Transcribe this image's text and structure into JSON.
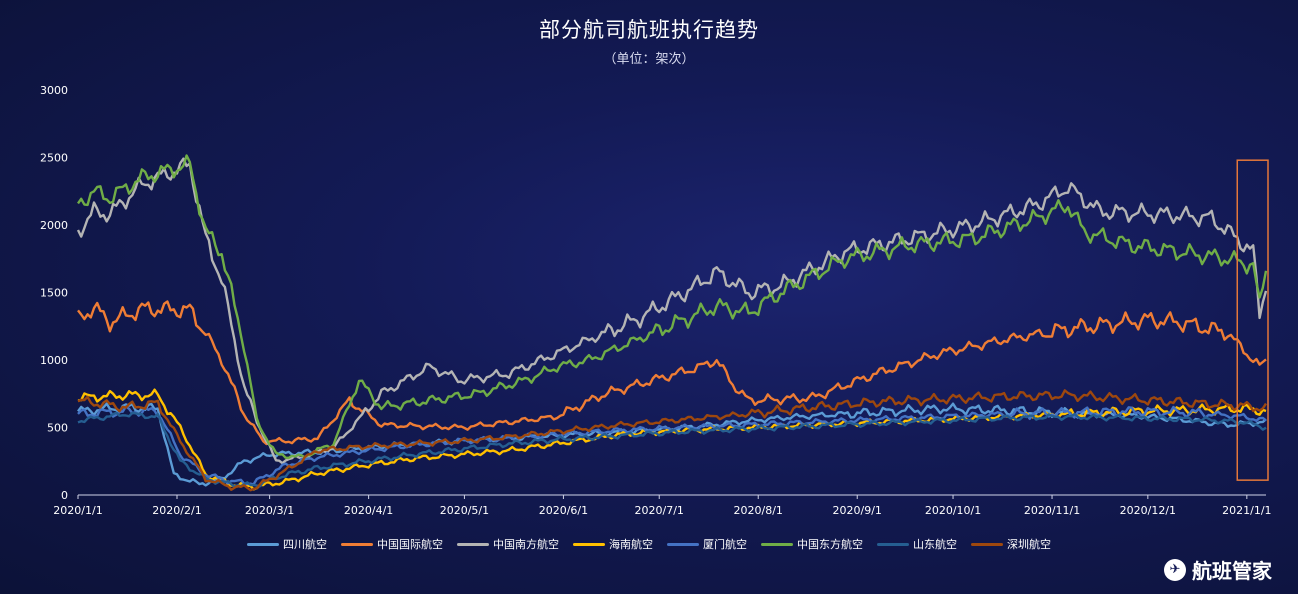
{
  "chart_data": {
    "type": "line",
    "title": "部分航司航班执行趋势",
    "subtitle": "（单位：架次）",
    "ylim": [
      0,
      3000
    ],
    "yticks": [
      "0",
      "500",
      "1000",
      "1500",
      "2000",
      "2500",
      "3000"
    ],
    "xticks": [
      "2020/1/1",
      "2020/2/1",
      "2020/3/1",
      "2020/4/1",
      "2020/5/1",
      "2020/6/1",
      "2020/7/1",
      "2020/8/1",
      "2020/9/1",
      "2020/10/1",
      "2020/11/1",
      "2020/12/1",
      "2021/1/1"
    ],
    "legend_position": "bottom",
    "highlight": {
      "x_start": "2021/1/1",
      "x_end": "2021/1/12",
      "color": "#e4773a"
    },
    "series": [
      {
        "name": "四川航空",
        "color": "#5b9bd5",
        "keys": [
          [
            0,
            620
          ],
          [
            15,
            650
          ],
          [
            25,
            640
          ],
          [
            30,
            150
          ],
          [
            38,
            80
          ],
          [
            45,
            120
          ],
          [
            52,
            250
          ],
          [
            60,
            300
          ],
          [
            75,
            320
          ],
          [
            90,
            350
          ],
          [
            105,
            380
          ],
          [
            120,
            400
          ],
          [
            135,
            420
          ],
          [
            150,
            440
          ],
          [
            165,
            460
          ],
          [
            180,
            480
          ],
          [
            195,
            510
          ],
          [
            210,
            550
          ],
          [
            225,
            580
          ],
          [
            240,
            600
          ],
          [
            255,
            620
          ],
          [
            270,
            640
          ],
          [
            285,
            630
          ],
          [
            300,
            620
          ],
          [
            315,
            600
          ],
          [
            330,
            590
          ],
          [
            345,
            560
          ],
          [
            360,
            520
          ],
          [
            372,
            540
          ]
        ]
      },
      {
        "name": "中国国际航空",
        "color": "#ef7d35",
        "keys": [
          [
            0,
            1300
          ],
          [
            5,
            1390
          ],
          [
            10,
            1280
          ],
          [
            20,
            1380
          ],
          [
            35,
            1370
          ],
          [
            40,
            1200
          ],
          [
            45,
            1000
          ],
          [
            52,
            600
          ],
          [
            58,
            400
          ],
          [
            66,
            400
          ],
          [
            75,
            420
          ],
          [
            85,
            700
          ],
          [
            95,
            520
          ],
          [
            120,
            500
          ],
          [
            150,
            580
          ],
          [
            165,
            750
          ],
          [
            180,
            850
          ],
          [
            195,
            950
          ],
          [
            200,
            1000
          ],
          [
            205,
            820
          ],
          [
            210,
            700
          ],
          [
            230,
            720
          ],
          [
            250,
            900
          ],
          [
            270,
            1050
          ],
          [
            290,
            1150
          ],
          [
            310,
            1230
          ],
          [
            335,
            1300
          ],
          [
            345,
            1280
          ],
          [
            360,
            1200
          ],
          [
            370,
            950
          ],
          [
            372,
            1000
          ]
        ]
      },
      {
        "name": "中国南方航空",
        "color": "#b4b4b4",
        "keys": [
          [
            0,
            1950
          ],
          [
            5,
            2100
          ],
          [
            10,
            2080
          ],
          [
            20,
            2300
          ],
          [
            35,
            2450
          ],
          [
            40,
            1900
          ],
          [
            45,
            1600
          ],
          [
            52,
            800
          ],
          [
            56,
            550
          ],
          [
            62,
            250
          ],
          [
            70,
            280
          ],
          [
            80,
            350
          ],
          [
            95,
            750
          ],
          [
            110,
            950
          ],
          [
            120,
            850
          ],
          [
            135,
            900
          ],
          [
            145,
            1000
          ],
          [
            155,
            1100
          ],
          [
            175,
            1300
          ],
          [
            190,
            1500
          ],
          [
            200,
            1650
          ],
          [
            210,
            1500
          ],
          [
            220,
            1550
          ],
          [
            240,
            1800
          ],
          [
            260,
            1900
          ],
          [
            280,
            2000
          ],
          [
            300,
            2150
          ],
          [
            310,
            2280
          ],
          [
            320,
            2100
          ],
          [
            340,
            2080
          ],
          [
            355,
            2050
          ],
          [
            368,
            1800
          ],
          [
            370,
            1350
          ],
          [
            372,
            1550
          ]
        ]
      },
      {
        "name": "海南航空",
        "color": "#ffc000",
        "keys": [
          [
            0,
            720
          ],
          [
            15,
            740
          ],
          [
            25,
            740
          ],
          [
            32,
            500
          ],
          [
            40,
            150
          ],
          [
            48,
            80
          ],
          [
            55,
            60
          ],
          [
            65,
            100
          ],
          [
            75,
            160
          ],
          [
            90,
            220
          ],
          [
            105,
            270
          ],
          [
            120,
            300
          ],
          [
            135,
            330
          ],
          [
            150,
            380
          ],
          [
            170,
            450
          ],
          [
            190,
            480
          ],
          [
            210,
            500
          ],
          [
            230,
            520
          ],
          [
            250,
            540
          ],
          [
            270,
            560
          ],
          [
            290,
            580
          ],
          [
            310,
            600
          ],
          [
            330,
            620
          ],
          [
            350,
            630
          ],
          [
            365,
            640
          ],
          [
            372,
            620
          ]
        ]
      },
      {
        "name": "厦门航空",
        "color": "#4472c4",
        "keys": [
          [
            0,
            600
          ],
          [
            15,
            620
          ],
          [
            25,
            620
          ],
          [
            32,
            300
          ],
          [
            40,
            150
          ],
          [
            48,
            100
          ],
          [
            55,
            90
          ],
          [
            65,
            220
          ],
          [
            75,
            280
          ],
          [
            90,
            330
          ],
          [
            105,
            370
          ],
          [
            120,
            400
          ],
          [
            135,
            420
          ],
          [
            150,
            450
          ],
          [
            170,
            480
          ],
          [
            190,
            500
          ],
          [
            210,
            520
          ],
          [
            230,
            540
          ],
          [
            250,
            560
          ],
          [
            270,
            580
          ],
          [
            290,
            600
          ],
          [
            310,
            610
          ],
          [
            330,
            620
          ],
          [
            350,
            610
          ],
          [
            365,
            580
          ],
          [
            372,
            550
          ]
        ]
      },
      {
        "name": "中国东方航空",
        "color": "#70ad47",
        "keys": [
          [
            0,
            2150
          ],
          [
            5,
            2250
          ],
          [
            10,
            2200
          ],
          [
            20,
            2350
          ],
          [
            35,
            2450
          ],
          [
            40,
            1950
          ],
          [
            45,
            1800
          ],
          [
            52,
            1100
          ],
          [
            56,
            550
          ],
          [
            62,
            300
          ],
          [
            70,
            280
          ],
          [
            80,
            380
          ],
          [
            88,
            850
          ],
          [
            95,
            650
          ],
          [
            110,
            700
          ],
          [
            125,
            750
          ],
          [
            140,
            850
          ],
          [
            150,
            950
          ],
          [
            160,
            1000
          ],
          [
            175,
            1150
          ],
          [
            190,
            1300
          ],
          [
            200,
            1400
          ],
          [
            210,
            1350
          ],
          [
            220,
            1500
          ],
          [
            240,
            1750
          ],
          [
            260,
            1850
          ],
          [
            280,
            1900
          ],
          [
            300,
            2050
          ],
          [
            310,
            2150
          ],
          [
            315,
            1950
          ],
          [
            330,
            1850
          ],
          [
            345,
            1800
          ],
          [
            360,
            1750
          ],
          [
            368,
            1700
          ],
          [
            370,
            1400
          ],
          [
            372,
            1700
          ]
        ]
      },
      {
        "name": "山东航空",
        "color": "#255e91",
        "keys": [
          [
            0,
            550
          ],
          [
            15,
            600
          ],
          [
            25,
            580
          ],
          [
            32,
            250
          ],
          [
            40,
            120
          ],
          [
            48,
            80
          ],
          [
            55,
            70
          ],
          [
            65,
            150
          ],
          [
            75,
            200
          ],
          [
            90,
            250
          ],
          [
            105,
            300
          ],
          [
            120,
            340
          ],
          [
            135,
            380
          ],
          [
            150,
            410
          ],
          [
            170,
            440
          ],
          [
            190,
            470
          ],
          [
            210,
            490
          ],
          [
            230,
            510
          ],
          [
            250,
            530
          ],
          [
            270,
            550
          ],
          [
            290,
            570
          ],
          [
            310,
            580
          ],
          [
            330,
            570
          ],
          [
            350,
            560
          ],
          [
            365,
            540
          ],
          [
            372,
            500
          ]
        ]
      },
      {
        "name": "深圳航空",
        "color": "#9e480e",
        "keys": [
          [
            0,
            700
          ],
          [
            15,
            650
          ],
          [
            25,
            680
          ],
          [
            32,
            400
          ],
          [
            40,
            120
          ],
          [
            48,
            60
          ],
          [
            55,
            50
          ],
          [
            65,
            180
          ],
          [
            75,
            330
          ],
          [
            90,
            360
          ],
          [
            105,
            380
          ],
          [
            120,
            400
          ],
          [
            135,
            430
          ],
          [
            150,
            470
          ],
          [
            170,
            520
          ],
          [
            190,
            560
          ],
          [
            210,
            600
          ],
          [
            230,
            650
          ],
          [
            250,
            690
          ],
          [
            270,
            710
          ],
          [
            290,
            730
          ],
          [
            310,
            740
          ],
          [
            330,
            710
          ],
          [
            350,
            680
          ],
          [
            365,
            660
          ],
          [
            372,
            640
          ]
        ]
      }
    ]
  },
  "brand": {
    "name": "航班管家",
    "logo_glyph": "✈"
  }
}
